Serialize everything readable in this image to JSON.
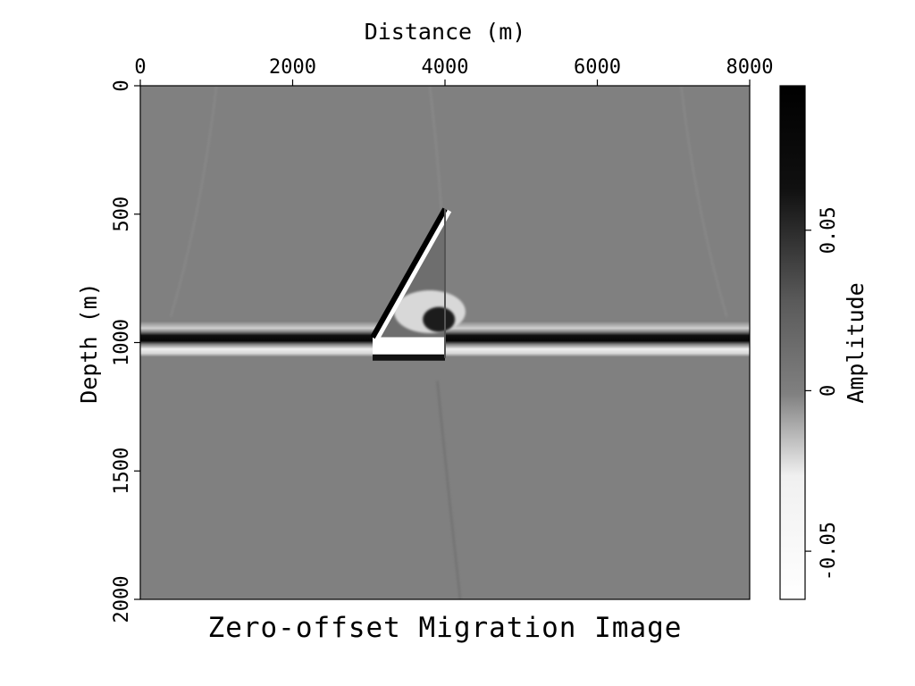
{
  "chart_data": {
    "type": "heatmap",
    "title": "Zero-offset Migration Image",
    "xlabel": "Distance (m)",
    "ylabel": "Depth (m)",
    "colorbar_label": "Amplitude",
    "xlim": [
      0,
      8000
    ],
    "ylim": [
      2000,
      0
    ],
    "x_ticks": [
      0,
      2000,
      4000,
      6000,
      8000
    ],
    "y_ticks": [
      0,
      500,
      1000,
      1500,
      2000
    ],
    "x_tick_labels": [
      "0",
      "2000",
      "4000",
      "6000",
      "8000"
    ],
    "y_tick_labels": [
      "0",
      "500",
      "1000",
      "1500",
      "2000"
    ],
    "x_axis_position": "top",
    "colormap": "gray (white = negative, black = positive)",
    "color_range": [
      -0.065,
      0.095
    ],
    "colorbar_ticks": [
      -0.05,
      0,
      0.05
    ],
    "colorbar_tick_labels": [
      "-0.05",
      "0",
      "0.05"
    ],
    "background_value": 0,
    "features": {
      "horizontal_reflector": {
        "depth": 1000,
        "x_range": [
          0,
          8000
        ],
        "upper_polarity": "positive",
        "lower_polarity": "negative"
      },
      "dipping_reflector": {
        "from": {
          "x": 3050,
          "depth": 980
        },
        "to": {
          "x": 4000,
          "depth": 480
        },
        "polarity": "positive"
      },
      "fault_edge_x": 4000,
      "wedge_bright_zone": {
        "x_range": [
          3050,
          4000
        ],
        "depth_range": [
          1000,
          1060
        ]
      }
    },
    "grid": false,
    "legend": "colorbar-right"
  }
}
